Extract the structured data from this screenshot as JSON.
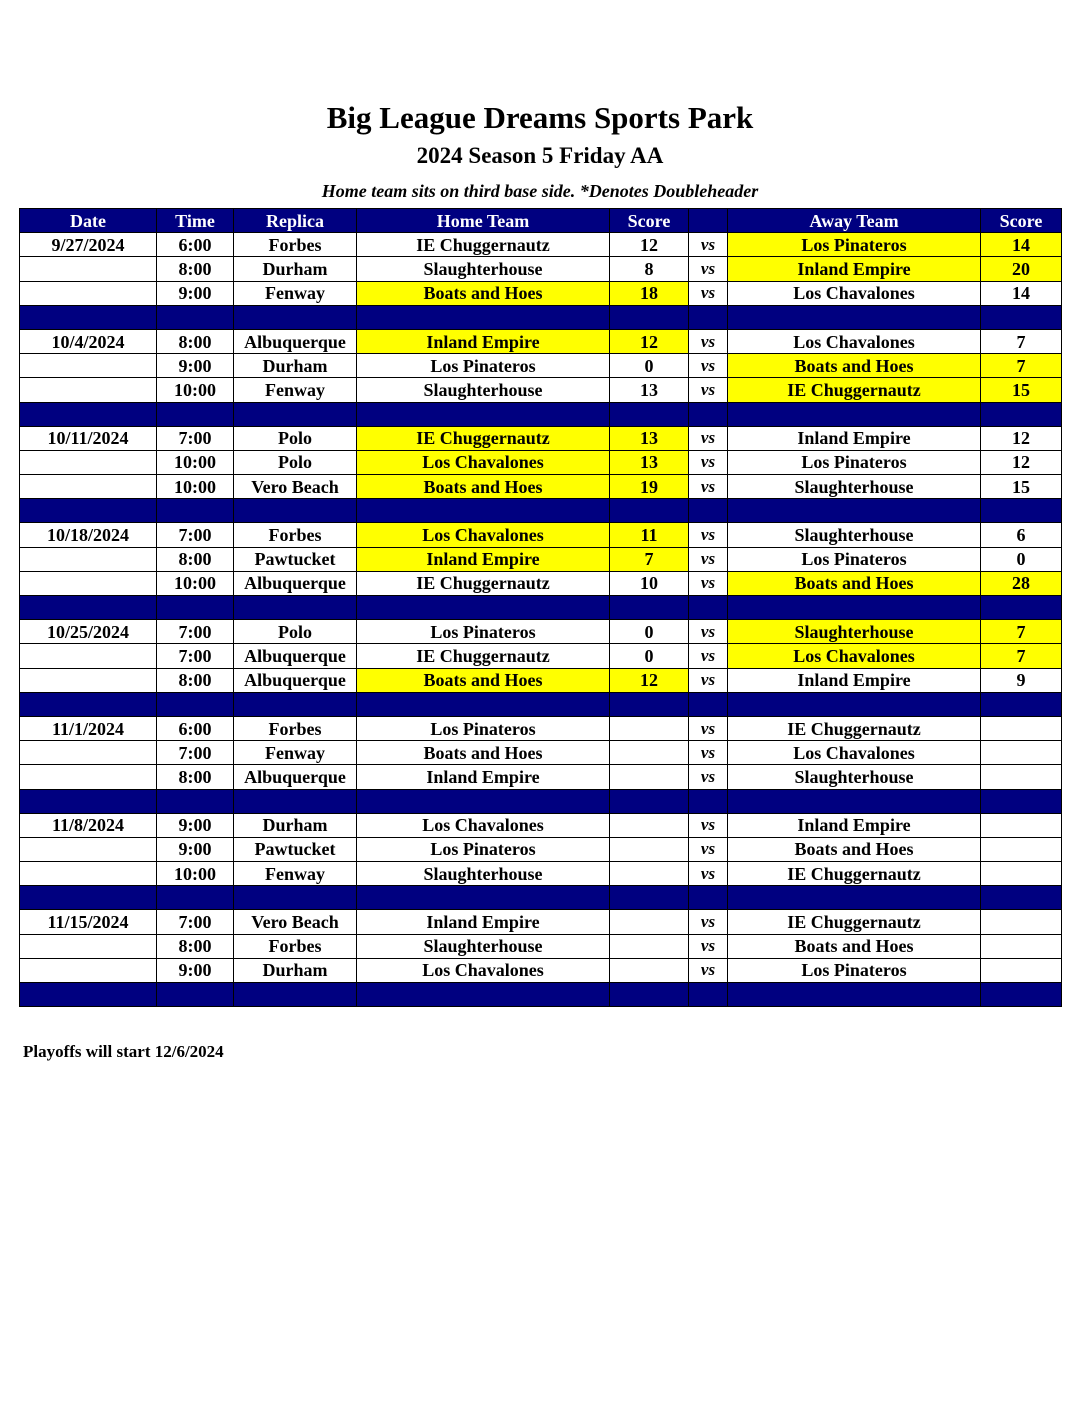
{
  "header": {
    "title": "Big League Dreams Sports Park",
    "subtitle": "2024 Season 5 Friday AA",
    "note": "Home team sits on third base side.  *Denotes Doubleheader"
  },
  "colors": {
    "header_bg": "#000080",
    "winner_highlight": "#ffff00"
  },
  "columns": [
    "Date",
    "Time",
    "Replica",
    "Home Team",
    "Score",
    "",
    "Away Team",
    "Score"
  ],
  "vs_label": "vs",
  "weeks": [
    {
      "date": "9/27/2024",
      "games": [
        {
          "time": "6:00",
          "replica": "Forbes",
          "home": "IE Chuggernautz",
          "home_score": "12",
          "away": "Los Pinateros",
          "away_score": "14",
          "winner": "away"
        },
        {
          "time": "8:00",
          "replica": "Durham",
          "home": "Slaughterhouse",
          "home_score": "8",
          "away": "Inland Empire",
          "away_score": "20",
          "winner": "away"
        },
        {
          "time": "9:00",
          "replica": "Fenway",
          "home": "Boats and Hoes",
          "home_score": "18",
          "away": "Los Chavalones",
          "away_score": "14",
          "winner": "home"
        }
      ]
    },
    {
      "date": "10/4/2024",
      "games": [
        {
          "time": "8:00",
          "replica": "Albuquerque",
          "home": "Inland Empire",
          "home_score": "12",
          "away": "Los Chavalones",
          "away_score": "7",
          "winner": "home"
        },
        {
          "time": "9:00",
          "replica": "Durham",
          "home": "Los Pinateros",
          "home_score": "0",
          "away": "Boats and Hoes",
          "away_score": "7",
          "winner": "away"
        },
        {
          "time": "10:00",
          "replica": "Fenway",
          "home": "Slaughterhouse",
          "home_score": "13",
          "away": "IE Chuggernautz",
          "away_score": "15",
          "winner": "away"
        }
      ]
    },
    {
      "date": "10/11/2024",
      "games": [
        {
          "time": "7:00",
          "replica": "Polo",
          "home": "IE Chuggernautz",
          "home_score": "13",
          "away": "Inland Empire",
          "away_score": "12",
          "winner": "home"
        },
        {
          "time": "10:00",
          "replica": "Polo",
          "home": "Los Chavalones",
          "home_score": "13",
          "away": "Los Pinateros",
          "away_score": "12",
          "winner": "home"
        },
        {
          "time": "10:00",
          "replica": "Vero Beach",
          "home": "Boats and Hoes",
          "home_score": "19",
          "away": "Slaughterhouse",
          "away_score": "15",
          "winner": "home"
        }
      ]
    },
    {
      "date": "10/18/2024",
      "games": [
        {
          "time": "7:00",
          "replica": "Forbes",
          "home": "Los Chavalones",
          "home_score": "11",
          "away": "Slaughterhouse",
          "away_score": "6",
          "winner": "home"
        },
        {
          "time": "8:00",
          "replica": "Pawtucket",
          "home": "Inland Empire",
          "home_score": "7",
          "away": "Los Pinateros",
          "away_score": "0",
          "winner": "home"
        },
        {
          "time": "10:00",
          "replica": "Albuquerque",
          "home": "IE Chuggernautz",
          "home_score": "10",
          "away": "Boats and Hoes",
          "away_score": "28",
          "winner": "away"
        }
      ]
    },
    {
      "date": "10/25/2024",
      "games": [
        {
          "time": "7:00",
          "replica": "Polo",
          "home": "Los Pinateros",
          "home_score": "0",
          "away": "Slaughterhouse",
          "away_score": "7",
          "winner": "away"
        },
        {
          "time": "7:00",
          "replica": "Albuquerque",
          "home": "IE Chuggernautz",
          "home_score": "0",
          "away": "Los Chavalones",
          "away_score": "7",
          "winner": "away"
        },
        {
          "time": "8:00",
          "replica": "Albuquerque",
          "home": "Boats and Hoes",
          "home_score": "12",
          "away": "Inland Empire",
          "away_score": "9",
          "winner": "home"
        }
      ]
    },
    {
      "date": "11/1/2024",
      "games": [
        {
          "time": "6:00",
          "replica": "Forbes",
          "home": "Los Pinateros",
          "home_score": "",
          "away": "IE Chuggernautz",
          "away_score": "",
          "winner": ""
        },
        {
          "time": "7:00",
          "replica": "Fenway",
          "home": "Boats and Hoes",
          "home_score": "",
          "away": "Los Chavalones",
          "away_score": "",
          "winner": ""
        },
        {
          "time": "8:00",
          "replica": "Albuquerque",
          "home": "Inland Empire",
          "home_score": "",
          "away": "Slaughterhouse",
          "away_score": "",
          "winner": ""
        }
      ]
    },
    {
      "date": "11/8/2024",
      "games": [
        {
          "time": "9:00",
          "replica": "Durham",
          "home": "Los Chavalones",
          "home_score": "",
          "away": "Inland Empire",
          "away_score": "",
          "winner": ""
        },
        {
          "time": "9:00",
          "replica": "Pawtucket",
          "home": "Los Pinateros",
          "home_score": "",
          "away": "Boats and Hoes",
          "away_score": "",
          "winner": ""
        },
        {
          "time": "10:00",
          "replica": "Fenway",
          "home": "Slaughterhouse",
          "home_score": "",
          "away": "IE Chuggernautz",
          "away_score": "",
          "winner": ""
        }
      ]
    },
    {
      "date": "11/15/2024",
      "games": [
        {
          "time": "7:00",
          "replica": "Vero Beach",
          "home": "Inland Empire",
          "home_score": "",
          "away": "IE Chuggernautz",
          "away_score": "",
          "winner": ""
        },
        {
          "time": "8:00",
          "replica": "Forbes",
          "home": "Slaughterhouse",
          "home_score": "",
          "away": "Boats and Hoes",
          "away_score": "",
          "winner": ""
        },
        {
          "time": "9:00",
          "replica": "Durham",
          "home": "Los Chavalones",
          "home_score": "",
          "away": "Los Pinateros",
          "away_score": "",
          "winner": ""
        }
      ]
    }
  ],
  "footer": "Playoffs will start 12/6/2024"
}
